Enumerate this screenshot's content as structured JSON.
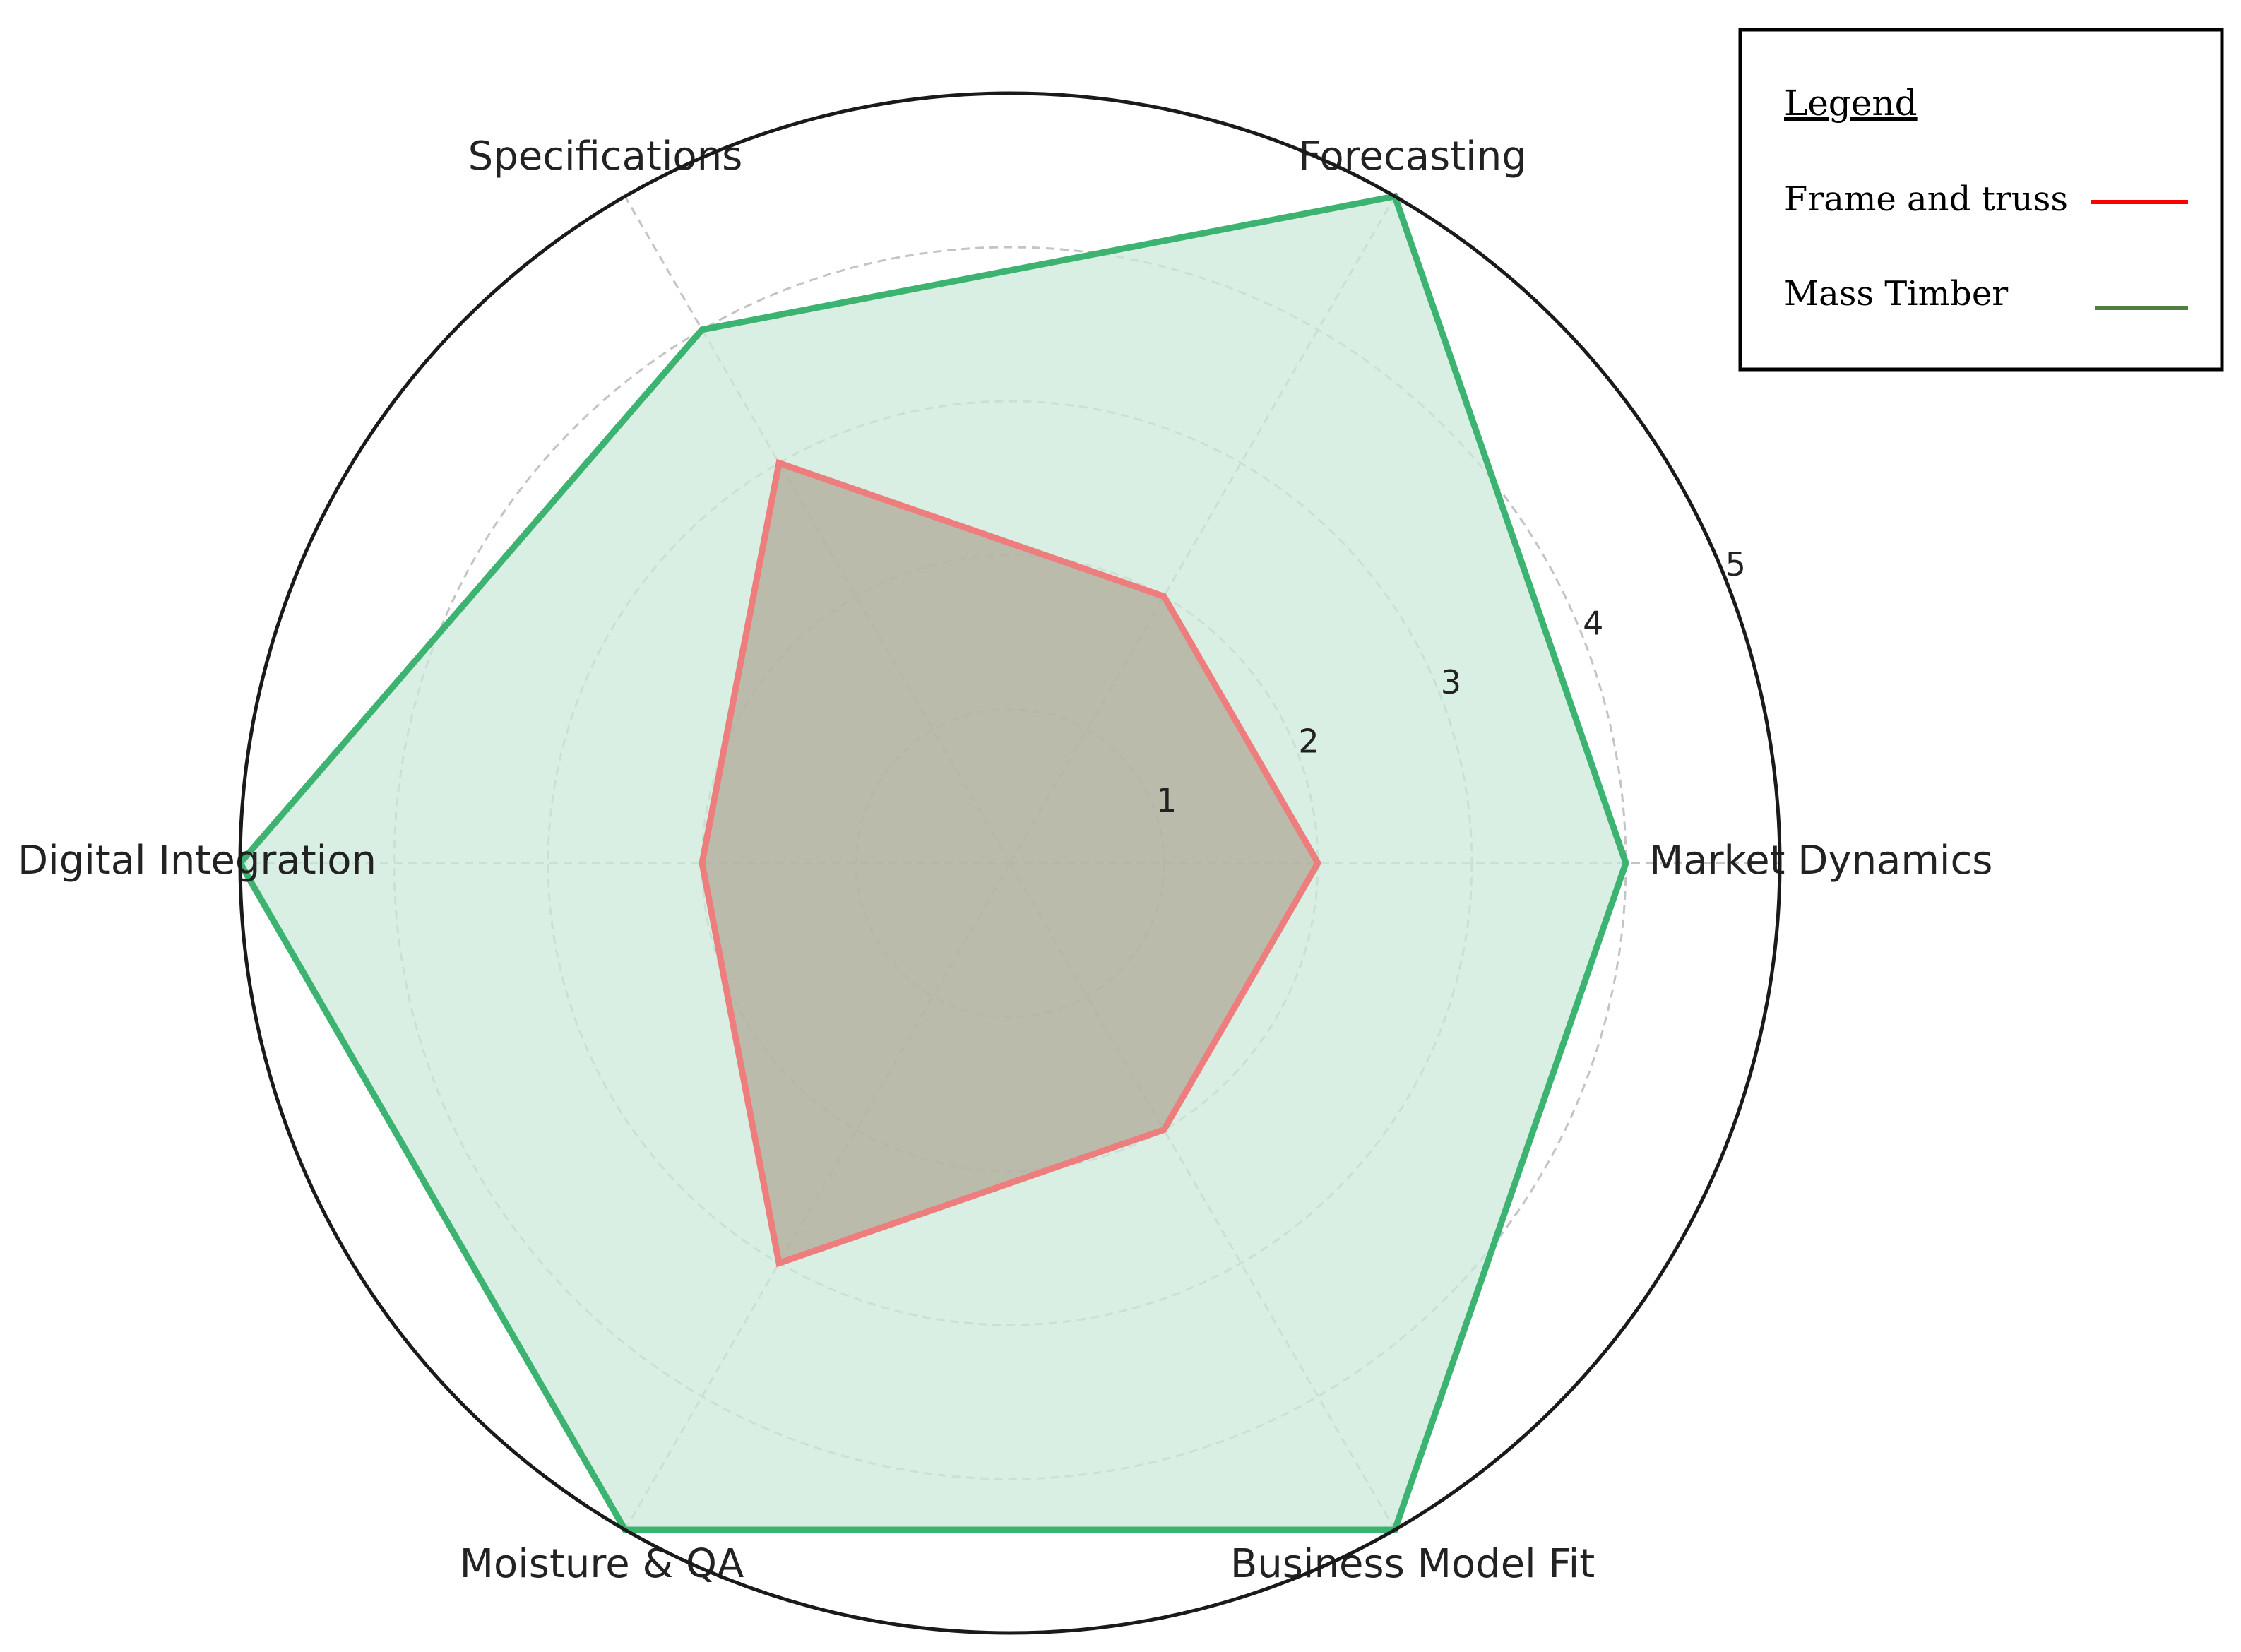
{
  "chart_data": {
    "type": "radar",
    "axes": [
      "Market Dynamics",
      "Forecasting",
      "Specifications",
      "Digital Integration",
      "Moisture & QA",
      "Business Model Fit"
    ],
    "rlim": [
      0,
      5
    ],
    "r_ticks": [
      1,
      2,
      3,
      4,
      5
    ],
    "grid": true,
    "series": [
      {
        "name": "Frame and truss",
        "values": [
          2,
          2,
          3,
          2,
          3,
          2
        ],
        "color": "#ee7d7d",
        "fill": "#b0a999",
        "legend_color": "#ff0000"
      },
      {
        "name": "Mass Timber",
        "values": [
          4,
          5,
          4,
          5,
          5,
          5
        ],
        "color": "#3cb371",
        "fill": "#cde9db",
        "legend_color": "#4f7f3f"
      }
    ],
    "legend": {
      "title": "Legend",
      "position": "top-right"
    }
  }
}
